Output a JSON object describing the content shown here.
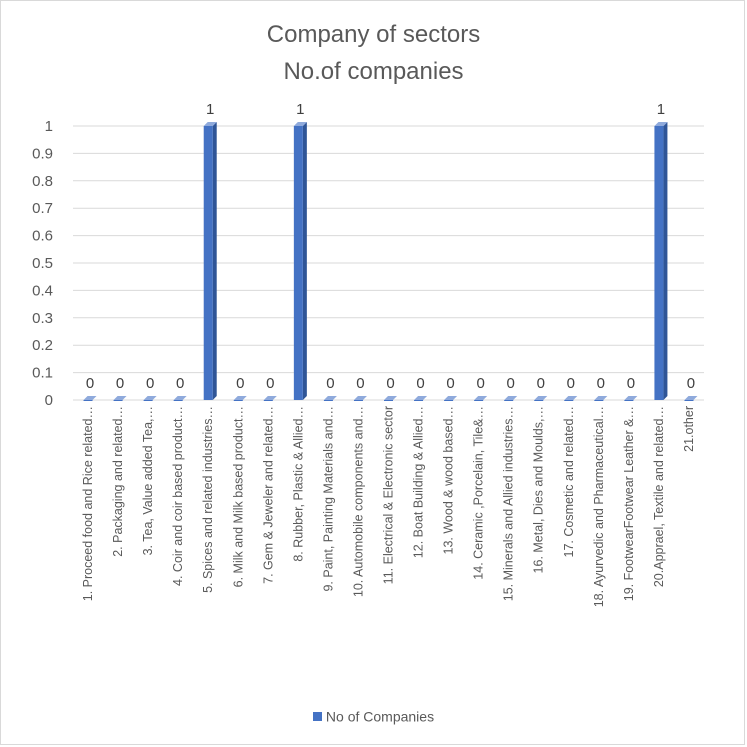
{
  "chart_data": {
    "type": "bar",
    "title": "Company of sectors",
    "subtitle": "No.of companies",
    "categories": [
      "1.      Proceed food and Rice related…",
      "2.      Packaging and related…",
      "3.      Tea, Value added Tea,…",
      "4.      Coir and coir based product…",
      "5.      Spices and related industries…",
      "6.      Milk and Milk based product…",
      "7.      Gem & Jeweler and related…",
      "8.      Rubber, Plastic & Allied…",
      "9.      Paint, Painting Materials and…",
      "10.  Automobile components and…",
      "11.  Electrical & Electronic sector",
      "12.  Boat Building & Allied…",
      "13.  Wood & wood based…",
      "14.  Ceramic ,Porcelain, Tile&…",
      "15.  Minerals and Allied industries…",
      "16.  Metal, Dies and Moulds,…",
      "17.  Cosmetic and related…",
      "18.  Ayurvedic  and Pharmaceutical…",
      "19.  FootwearFootwear Leather &…",
      "20.Apprael, Textile and related…",
      "21.other"
    ],
    "series": [
      {
        "name": "No of Companies",
        "color": "#4472C4",
        "values": [
          0,
          0,
          0,
          0,
          1,
          0,
          0,
          1,
          0,
          0,
          0,
          0,
          0,
          0,
          0,
          0,
          0,
          0,
          0,
          1,
          0
        ]
      }
    ],
    "ylim": [
      0,
      1
    ],
    "yticks": [
      "0",
      "0.1",
      "0.2",
      "0.3",
      "0.4",
      "0.5",
      "0.6",
      "0.7",
      "0.8",
      "0.9",
      "1"
    ],
    "grid": true,
    "legend_position": "bottom",
    "data_labels": true
  }
}
